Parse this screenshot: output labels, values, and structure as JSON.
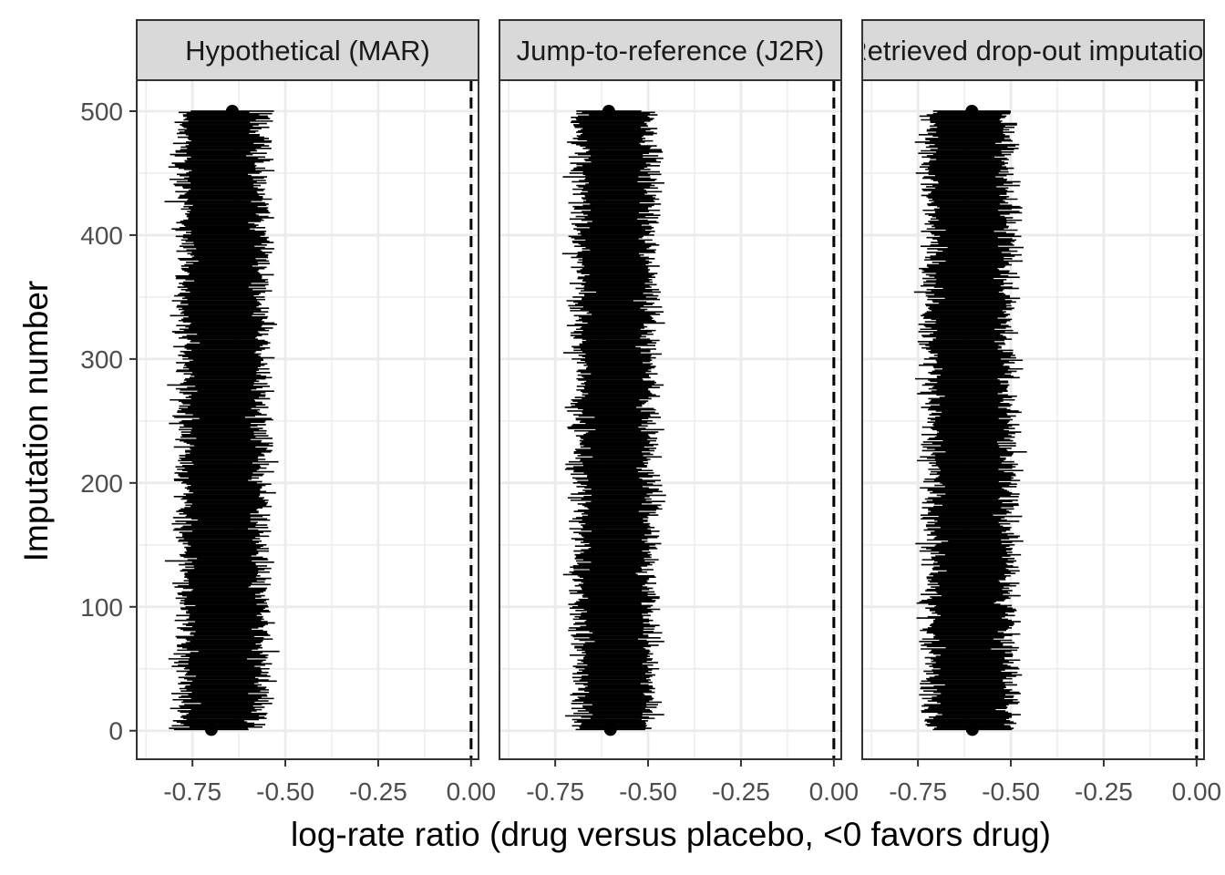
{
  "chart_data": {
    "type": "scatter",
    "xlabel": "log-rate ratio (drug versus placebo, <0 favors drug)",
    "ylabel": "Imputation number",
    "xlim": [
      -0.9,
      0.02
    ],
    "ylim": [
      -23,
      525
    ],
    "x_ticks": [
      -0.75,
      -0.5,
      -0.25,
      0.0
    ],
    "x_tick_labels": [
      "-0.75",
      "-0.50",
      "-0.25",
      "0.00"
    ],
    "y_ticks": [
      0,
      100,
      200,
      300,
      400,
      500
    ],
    "y_tick_labels": [
      "0",
      "100",
      "200",
      "300",
      "400",
      "500"
    ],
    "reference_line_x": 0.0,
    "n_imputations": 500,
    "grid": true,
    "panels": [
      {
        "name": "Hypothetical (MAR)",
        "estimate": -0.67,
        "ci_lower": -0.78,
        "ci_upper": -0.57,
        "jitter": 0.02
      },
      {
        "name": "Jump-to-reference (J2R)",
        "estimate": -0.59,
        "ci_lower": -0.69,
        "ci_upper": -0.5,
        "jitter": 0.02
      },
      {
        "name": "Retrieved drop-out imputation",
        "estimate": -0.61,
        "ci_lower": -0.72,
        "ci_upper": -0.51,
        "jitter": 0.02
      }
    ]
  }
}
